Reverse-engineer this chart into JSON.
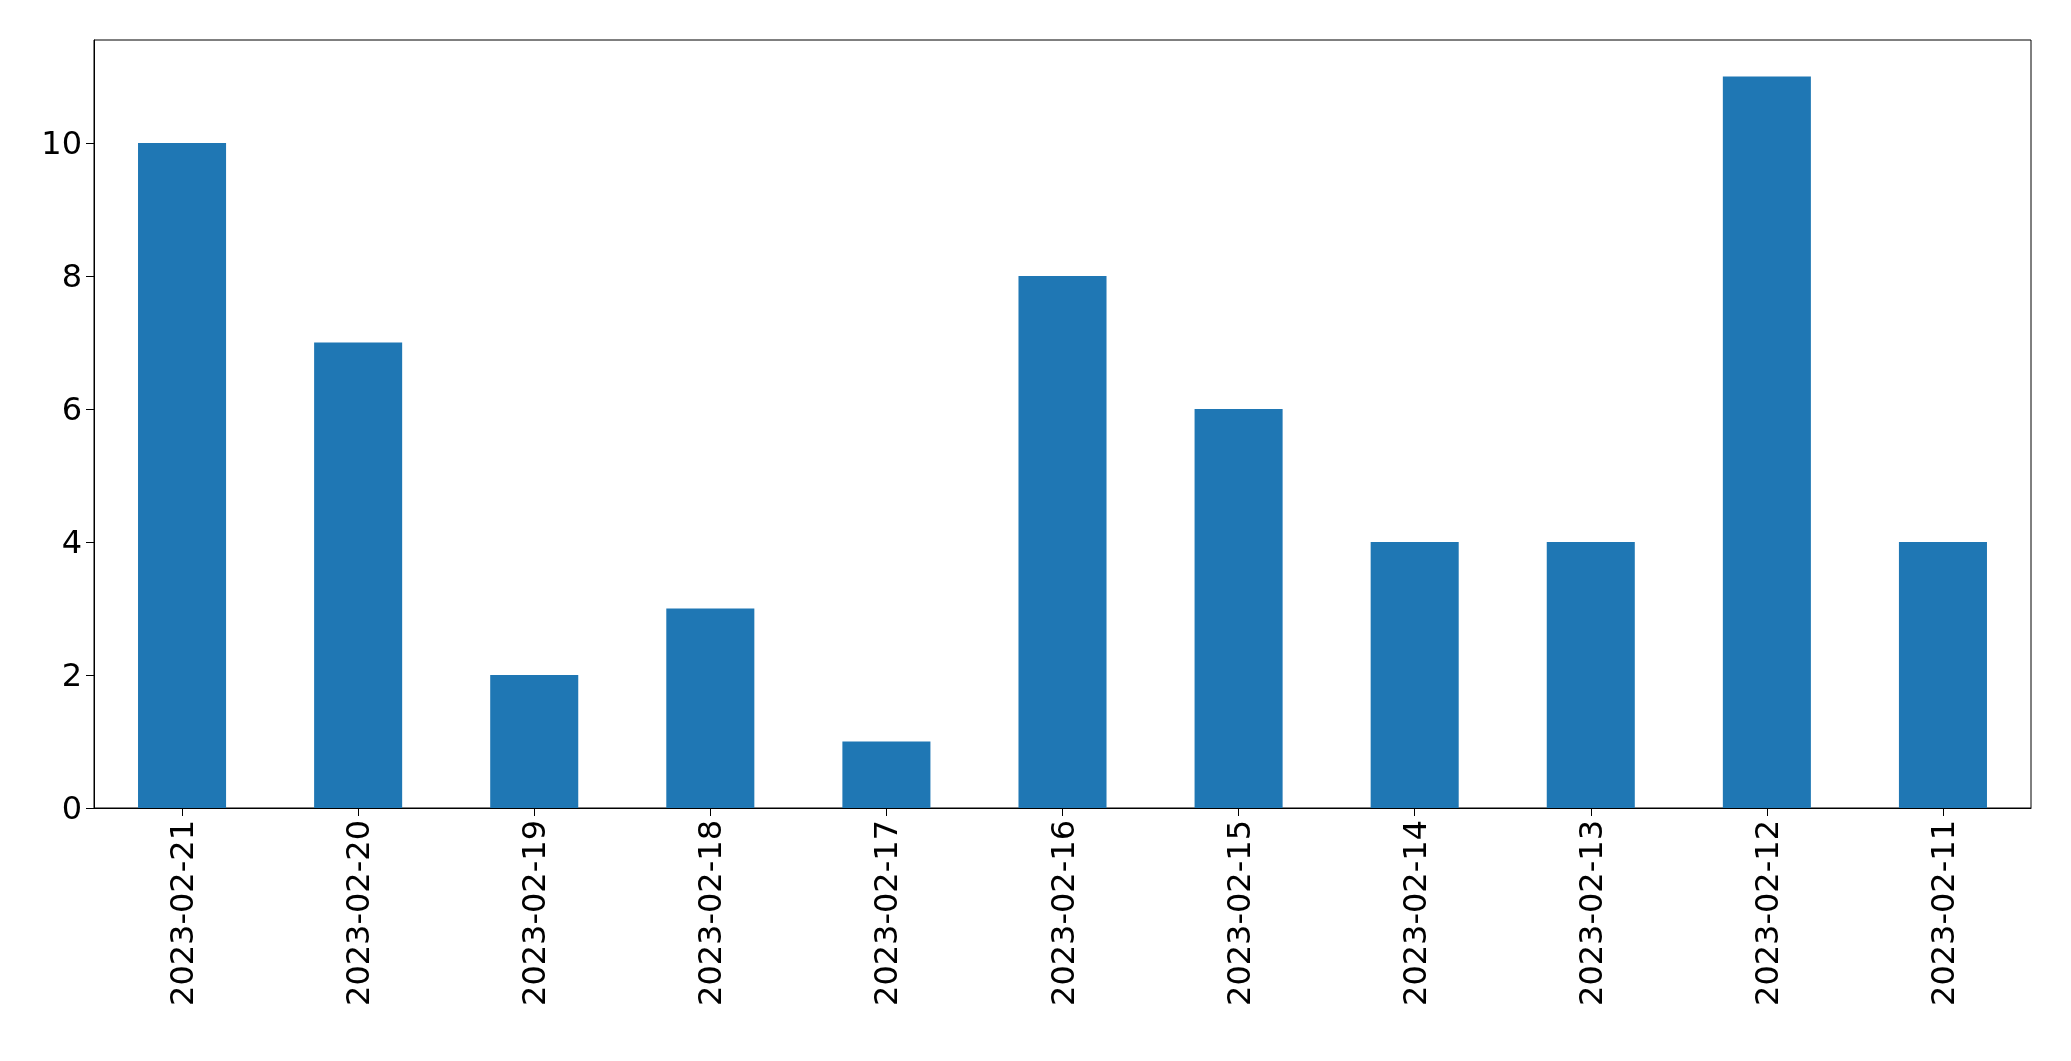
{
  "chart_data": {
    "type": "bar",
    "categories": [
      "2023-02-21",
      "2023-02-20",
      "2023-02-19",
      "2023-02-18",
      "2023-02-17",
      "2023-02-16",
      "2023-02-15",
      "2023-02-14",
      "2023-02-13",
      "2023-02-12",
      "2023-02-11"
    ],
    "values": [
      10,
      7,
      2,
      3,
      1,
      8,
      6,
      4,
      4,
      11,
      4
    ],
    "color": "#1f77b4",
    "ylim": [
      0,
      11.55
    ],
    "yticks": [
      0,
      2,
      4,
      6,
      8,
      10
    ],
    "grid": false
  }
}
